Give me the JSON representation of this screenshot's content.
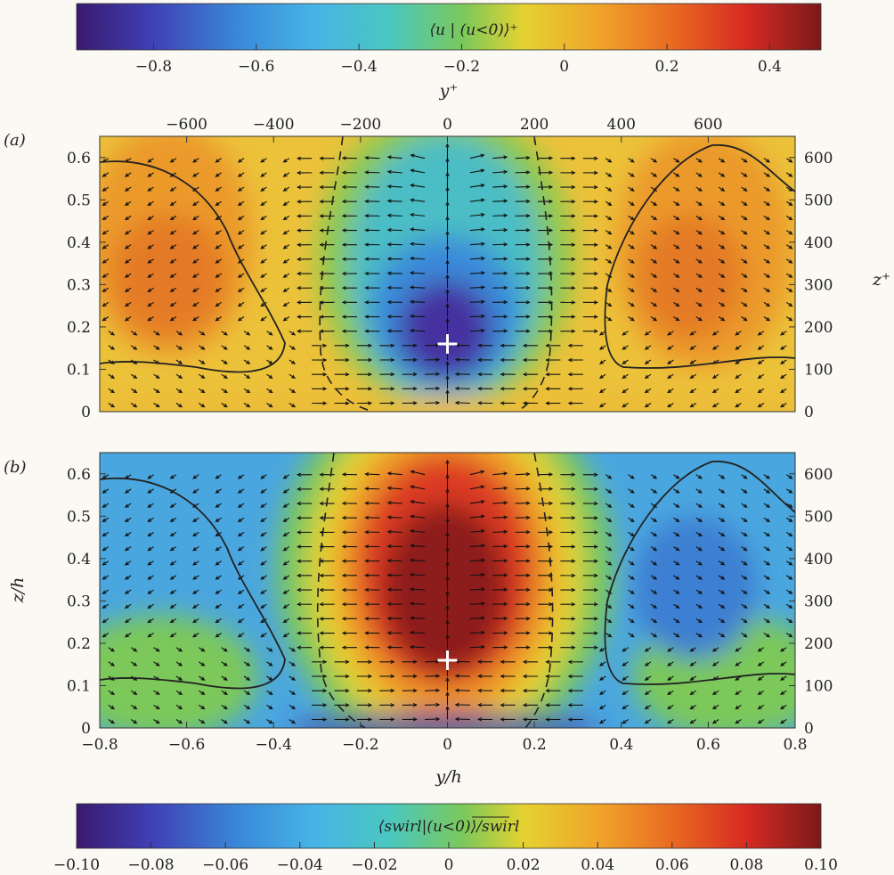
{
  "chart_data": [
    {
      "panel": "top_colorbar",
      "type": "colorbar",
      "title": "⟨u | (u<0)⟩⁺",
      "range": [
        -0.95,
        0.5
      ],
      "ticks": [
        -0.8,
        -0.6,
        -0.4,
        -0.2,
        0,
        0.2,
        0.4
      ],
      "tick_labels": [
        "−0.8",
        "−0.6",
        "−0.4",
        "−0.2",
        "0",
        "0.2",
        "0.4"
      ],
      "colormap": "parula-like (purple→blue→cyan→green→yellow→orange→red→dark red)"
    },
    {
      "panel": "a",
      "label": "(a)",
      "type": "heatmap",
      "description": "Contour map of conditional streamwise velocity with in-plane vector arrows; negative (purple) core at y/h=0, z/h≈0.16 marked by a cross; two positive (orange) lobes at |y/h|≈0.6 outlined by solid contours; dashed zero contours near y/h≈±0.22",
      "xlabel": "y/h",
      "ylabel": "z/h",
      "xlim": [
        -0.8,
        0.8
      ],
      "ylim": [
        0,
        0.65
      ],
      "yticks": [
        0,
        0.1,
        0.2,
        0.3,
        0.4,
        0.5,
        0.6
      ],
      "ytick_labels": [
        "0",
        "0.1",
        "0.2",
        "0.3",
        "0.4",
        "0.5",
        "0.6"
      ],
      "top_axis_label": "y⁺",
      "top_ticks": [
        -600,
        -400,
        -200,
        0,
        200,
        400,
        600
      ],
      "top_tick_labels": [
        "−600",
        "−400",
        "−200",
        "0",
        "200",
        "400",
        "600"
      ],
      "right_axis_label": "z⁺",
      "right_ticks": [
        0,
        100,
        200,
        300,
        400,
        500,
        600
      ],
      "right_tick_labels": [
        "0",
        "100",
        "200",
        "300",
        "400",
        "500",
        "600"
      ],
      "marker": {
        "y": 0,
        "z": 0.16,
        "symbol": "+"
      },
      "features": [
        {
          "kind": "low_speed_core",
          "y": 0,
          "z": 0.16,
          "value": -0.92
        },
        {
          "kind": "high_speed_lobe",
          "y": -0.67,
          "z": 0.35,
          "value": 0.3
        },
        {
          "kind": "high_speed_lobe",
          "y": 0.6,
          "z": 0.33,
          "value": 0.3
        }
      ]
    },
    {
      "panel": "b",
      "label": "(b)",
      "type": "heatmap",
      "description": "Contour map of conditional swirl with the same vector arrows; strong positive (dark red) region centred at y/h=0, z/h≈0.35, negative (blue) regions at |y/h|>0.3, a thin purple band at z/h≈0",
      "xlabel": "y/h",
      "ylabel": "z/h",
      "xlim": [
        -0.8,
        0.8
      ],
      "ylim": [
        0,
        0.65
      ],
      "xticks": [
        -0.8,
        -0.6,
        -0.4,
        -0.2,
        0,
        0.2,
        0.4,
        0.6,
        0.8
      ],
      "xtick_labels": [
        "−0.8",
        "−0.6",
        "−0.4",
        "−0.2",
        "0",
        "0.2",
        "0.4",
        "0.6",
        "0.8"
      ],
      "yticks": [
        0,
        0.1,
        0.2,
        0.3,
        0.4,
        0.5,
        0.6
      ],
      "ytick_labels": [
        "0",
        "0.1",
        "0.2",
        "0.3",
        "0.4",
        "0.5",
        "0.6"
      ],
      "right_axis_label": "z⁺",
      "right_ticks": [
        0,
        100,
        200,
        300,
        400,
        500,
        600
      ],
      "right_tick_labels": [
        "0",
        "100",
        "200",
        "300",
        "400",
        "500",
        "600"
      ],
      "marker": {
        "y": 0,
        "z": 0.16,
        "symbol": "+"
      },
      "features": [
        {
          "kind": "swirl_maximum",
          "y": 0,
          "z": 0.35,
          "value": 0.1
        },
        {
          "kind": "swirl_minimum_band",
          "y": 0,
          "z": 0.01,
          "value": -0.09
        },
        {
          "kind": "negative_region",
          "y": -0.6,
          "z": 0.35,
          "value": -0.035
        },
        {
          "kind": "negative_region",
          "y": 0.55,
          "z": 0.4,
          "value": -0.04
        }
      ]
    },
    {
      "panel": "bottom_colorbar",
      "type": "colorbar",
      "title": "⟨swirl|(u<0)⟩/swirl",
      "range": [
        -0.1,
        0.1
      ],
      "ticks": [
        -0.1,
        -0.08,
        -0.06,
        -0.04,
        -0.02,
        0,
        0.02,
        0.04,
        0.06,
        0.08,
        0.1
      ],
      "tick_labels": [
        "−0.10",
        "−0.08",
        "−0.06",
        "−0.04",
        "−0.02",
        "0",
        "0.02",
        "0.04",
        "0.06",
        "0.08",
        "0.10"
      ],
      "colormap": "parula-like (purple→blue→cyan→green→yellow→orange→red→dark red)"
    }
  ],
  "colors": {
    "background": "#fbf9f4",
    "stops": [
      "#3a1a6e",
      "#3f3fb5",
      "#3a8ad9",
      "#47b4e6",
      "#4ac7c0",
      "#7cc85a",
      "#e4d230",
      "#f0a52a",
      "#e96a21",
      "#d62a22",
      "#7a1a1a"
    ]
  }
}
